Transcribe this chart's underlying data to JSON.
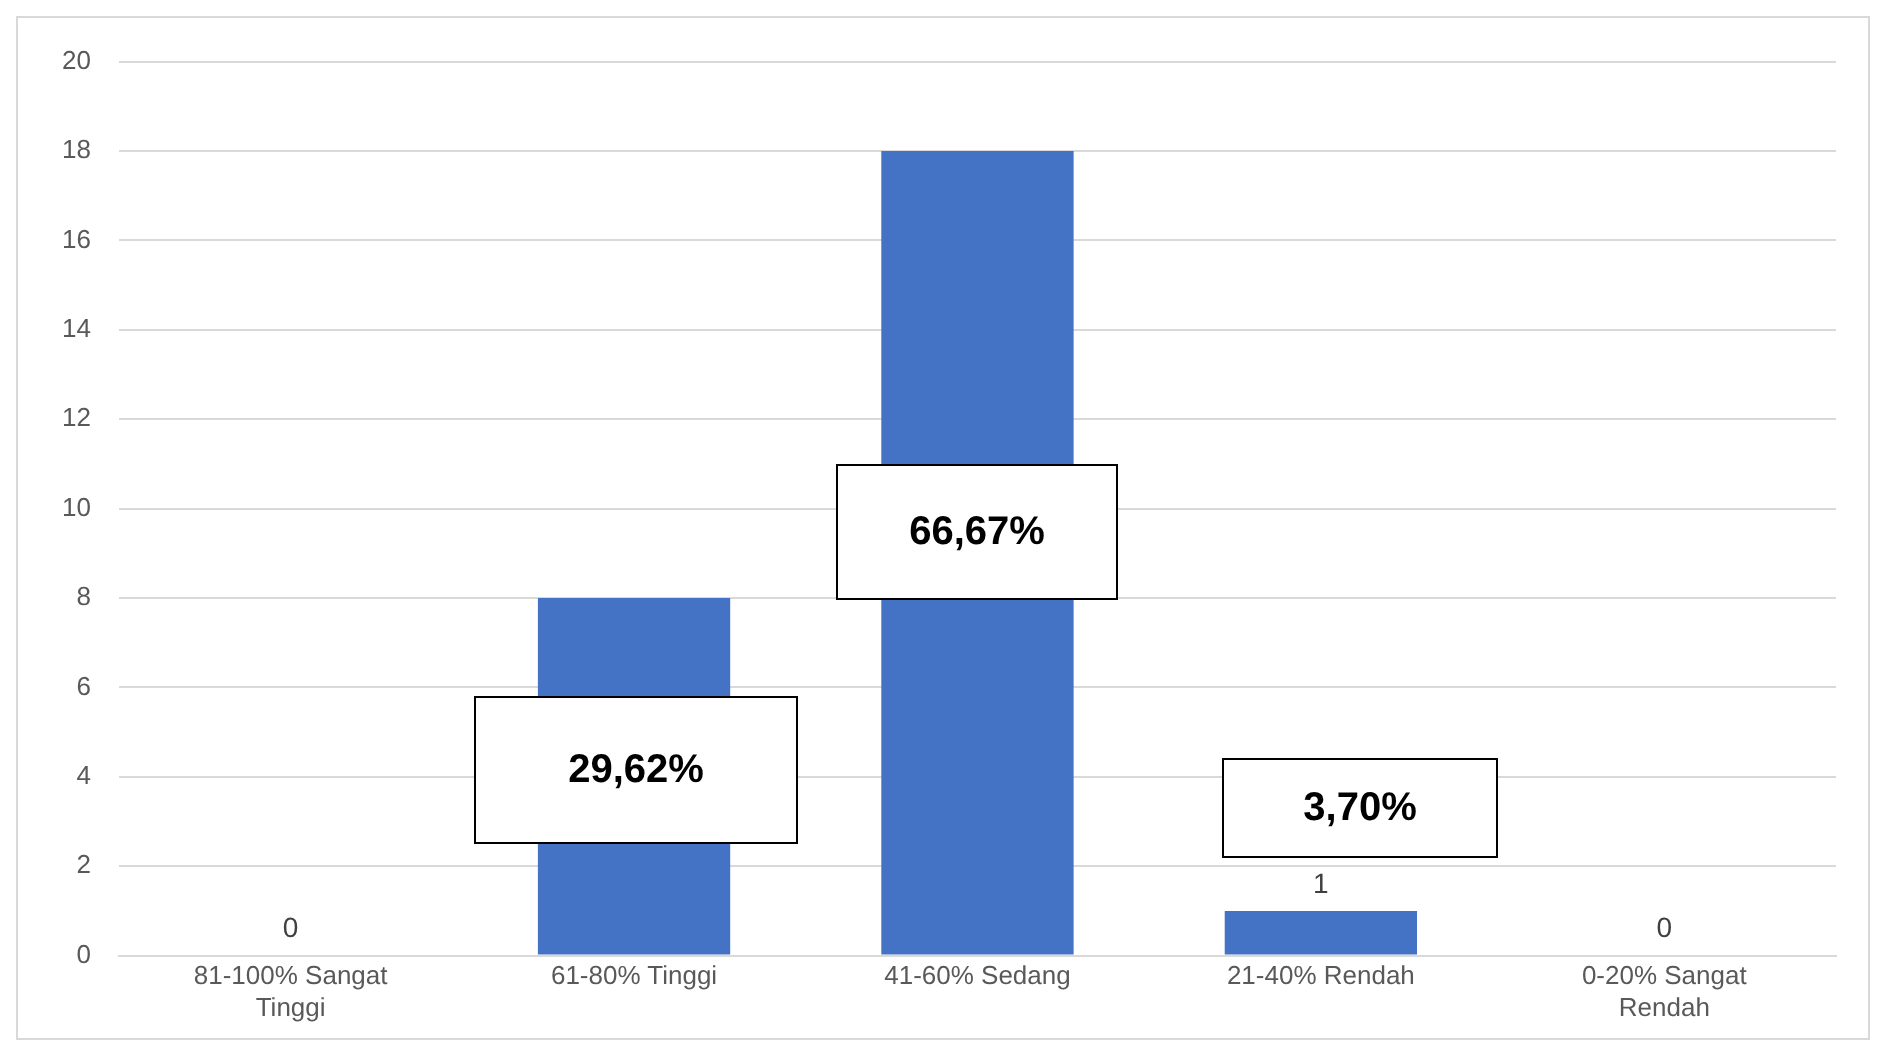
{
  "chart_data": {
    "type": "bar",
    "categories": [
      "81-100% Sangat Tinggi",
      "61-80% Tinggi",
      "41-60% Sedang",
      "21-40% Rendah",
      "0-20% Sangat Rendah"
    ],
    "values": [
      0,
      8,
      18,
      1,
      0
    ],
    "color": "#4472c4",
    "value_labels": [
      "0",
      null,
      null,
      "1",
      "0"
    ],
    "ylim": [
      0,
      20
    ],
    "yticks": [
      0,
      2,
      4,
      6,
      8,
      10,
      12,
      14,
      16,
      18,
      20
    ],
    "grid": "y",
    "legend": false,
    "annotations": [
      "29,62%",
      "66,67%",
      "3,70%"
    ]
  }
}
